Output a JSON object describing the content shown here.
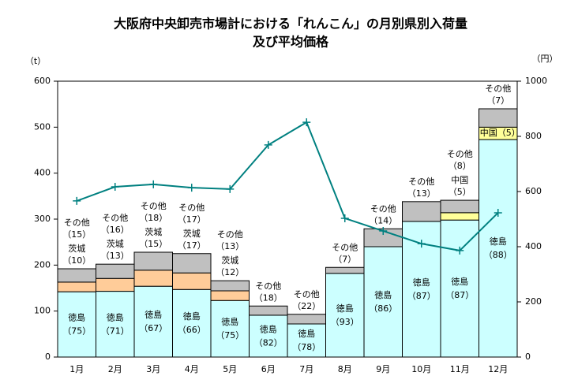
{
  "chart_data": {
    "type": "bar",
    "stacked": true,
    "title": "大阪府中央卸売市場計における「れんこん」の月別県別入荷量",
    "subtitle": "及び平均価格",
    "y_label": "（t）",
    "y2_label": "（円）",
    "categories": [
      "1月",
      "2月",
      "3月",
      "4月",
      "5月",
      "6月",
      "7月",
      "8月",
      "9月",
      "10月",
      "11月",
      "12月"
    ],
    "series": [
      {
        "name": "徳島",
        "color": "#ccffff",
        "values": [
          142,
          143,
          154,
          147,
          123,
          91,
          72,
          182,
          240,
          295,
          298,
          473
        ],
        "share_labels": [
          "（75）",
          "（71）",
          "（67）",
          "（66）",
          "（75）",
          "（82）",
          "（78）",
          "（93）",
          "（86）",
          "（87）",
          "（87）",
          "（88）"
        ]
      },
      {
        "name": "茨城",
        "color": "#ffcc99",
        "values": [
          21,
          28,
          35,
          36,
          21,
          null,
          null,
          null,
          null,
          null,
          null,
          null
        ],
        "share_labels": [
          "（10）",
          "（13）",
          "（15）",
          "（17）",
          "（12）",
          null,
          null,
          null,
          null,
          null,
          null,
          null
        ]
      },
      {
        "name": "中国",
        "color": "#ffff99",
        "values": [
          null,
          null,
          null,
          null,
          null,
          null,
          null,
          null,
          null,
          null,
          16,
          27
        ],
        "share_labels": [
          null,
          null,
          null,
          null,
          null,
          null,
          null,
          null,
          null,
          null,
          "（5）",
          "（5）"
        ]
      },
      {
        "name": "その他",
        "color": "#c0c0c0",
        "values": [
          29,
          31,
          39,
          42,
          22,
          20,
          21,
          13,
          39,
          43,
          27,
          40
        ],
        "share_labels": [
          "（15）",
          "（16）",
          "（18）",
          "（17）",
          "（13）",
          "（18）",
          "（22）",
          "（7）",
          "（14）",
          "（13）",
          "（8）",
          "（7）"
        ]
      },
      {
        "type": "line",
        "axis": "y2",
        "color": "#008080",
        "values": [
          566,
          617,
          626,
          614,
          609,
          769,
          851,
          503,
          457,
          411,
          386,
          523
        ]
      }
    ],
    "ylim": [
      0,
      600
    ],
    "yticks": [
      0,
      100,
      200,
      300,
      400,
      500,
      600
    ],
    "y2lim": [
      0,
      1000
    ],
    "y2ticks": [
      0,
      200,
      400,
      600,
      800,
      1000
    ]
  }
}
